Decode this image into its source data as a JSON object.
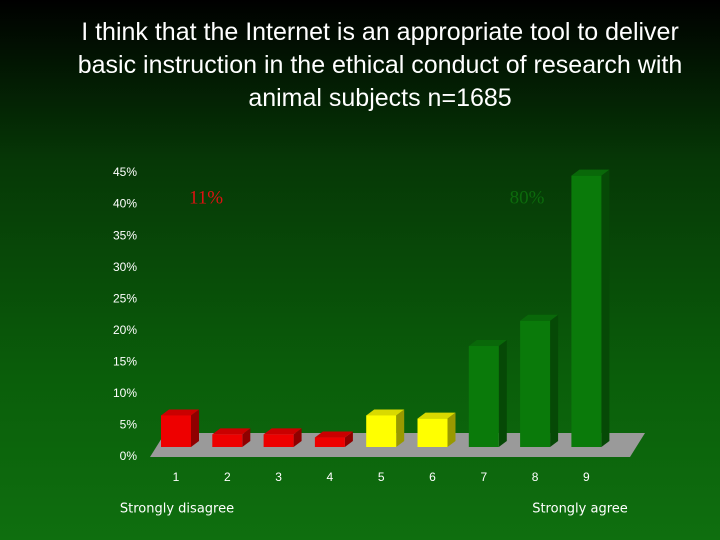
{
  "chart_data": {
    "type": "bar3d",
    "title": "I think that the Internet is an appropriate tool to deliver basic instruction in the ethical conduct of research with animal subjects  n=1685",
    "categories": [
      "1",
      "2",
      "3",
      "4",
      "5",
      "6",
      "7",
      "8",
      "9"
    ],
    "values": [
      5,
      2,
      2,
      1.5,
      5,
      4.5,
      16,
      20,
      43
    ],
    "colors": [
      "#ee0000",
      "#ee0000",
      "#ee0000",
      "#ee0000",
      "#ffff00",
      "#ffff00",
      "#0a7a0a",
      "#0a7a0a",
      "#0a7a0a"
    ],
    "ylim": [
      0,
      45
    ],
    "yticks": [
      {
        "value": 0,
        "label": "0%"
      },
      {
        "value": 5,
        "label": "5%"
      },
      {
        "value": 10,
        "label": "10%"
      },
      {
        "value": 15,
        "label": "15%"
      },
      {
        "value": 20,
        "label": "20%"
      },
      {
        "value": 25,
        "label": "25%"
      },
      {
        "value": 30,
        "label": "30%"
      },
      {
        "value": 35,
        "label": "35%"
      },
      {
        "value": 40,
        "label": "40%"
      },
      {
        "value": 45,
        "label": "45%"
      }
    ],
    "annotations": [
      "11%",
      "80%"
    ],
    "x_left_label": "Strongly disagree",
    "x_right_label": "Strongly agree"
  }
}
